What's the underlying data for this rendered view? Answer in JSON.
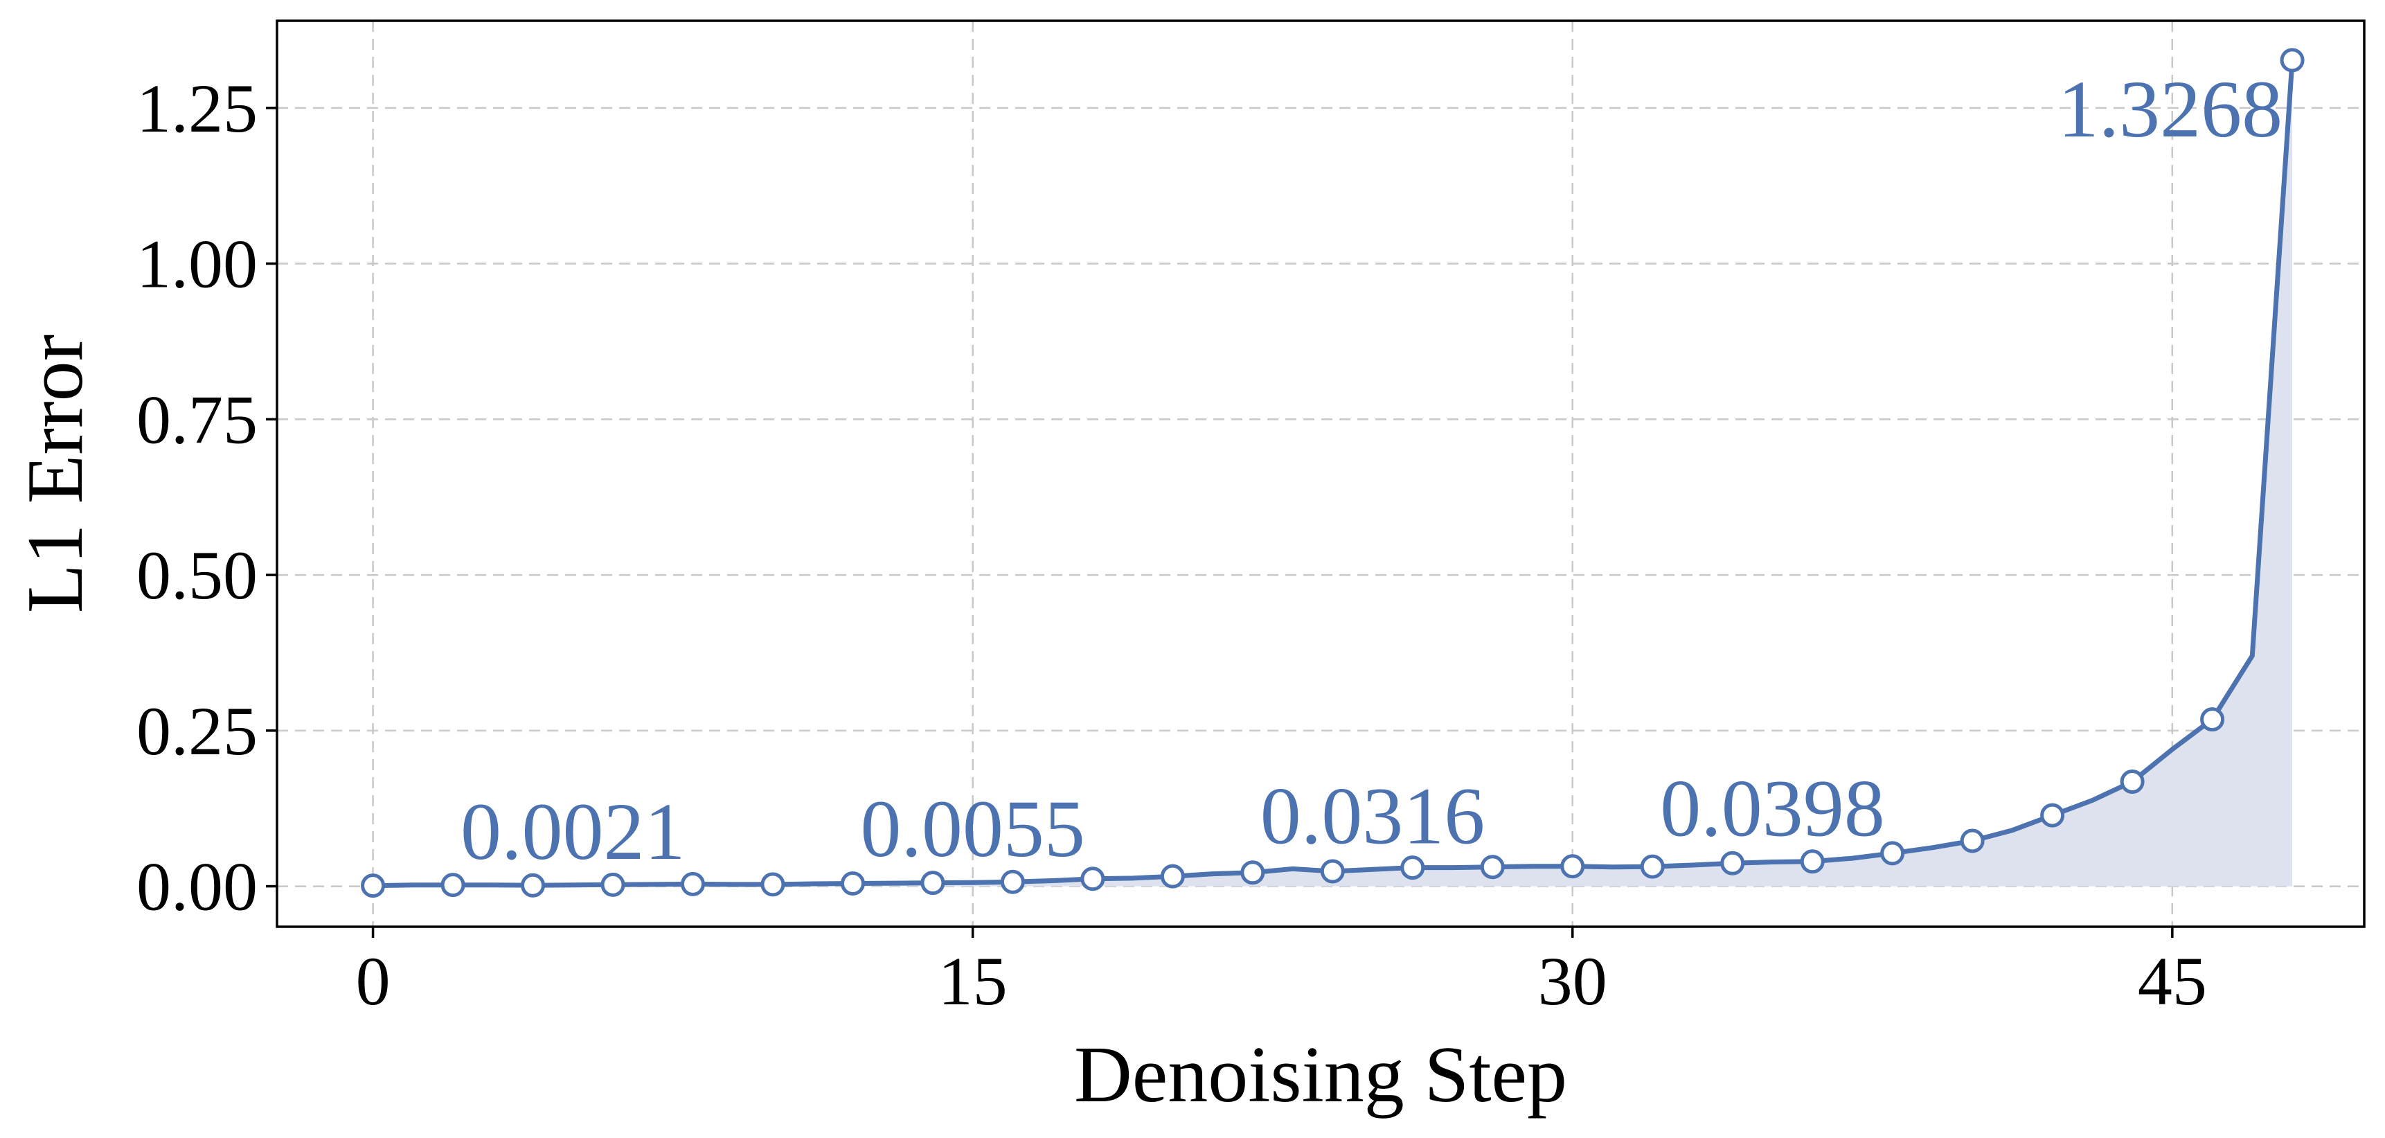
{
  "chart_data": {
    "type": "line",
    "title": "",
    "xlabel": "Denoising Step",
    "ylabel": "L1 Error",
    "xlim": [
      -2.4,
      49.8
    ],
    "ylim": [
      -0.065,
      1.39
    ],
    "x_ticks": [
      0,
      15,
      30,
      45
    ],
    "x_tick_labels": [
      "0",
      "15",
      "30",
      "45"
    ],
    "y_ticks": [
      0.0,
      0.25,
      0.5,
      0.75,
      1.0,
      1.25
    ],
    "y_tick_labels": [
      "0.00",
      "0.25",
      "0.50",
      "0.75",
      "1.00",
      "1.25"
    ],
    "grid": true,
    "fill_under": true,
    "series": [
      {
        "x": [
          0,
          1,
          2,
          3,
          4,
          5,
          6,
          7,
          8,
          9,
          10,
          11,
          12,
          13,
          14,
          15,
          16,
          17,
          18,
          19,
          20,
          21,
          22,
          23,
          24,
          25,
          26,
          27,
          28,
          29,
          30,
          31,
          32,
          33,
          34,
          35,
          36,
          37,
          38,
          39,
          40,
          41,
          42,
          43,
          44,
          45,
          46,
          47,
          48
        ],
        "values": [
          0.001,
          0.002,
          0.0021,
          0.002,
          0.0015,
          0.002,
          0.0025,
          0.003,
          0.0035,
          0.003,
          0.003,
          0.004,
          0.0045,
          0.005,
          0.0055,
          0.006,
          0.007,
          0.009,
          0.012,
          0.013,
          0.016,
          0.02,
          0.022,
          0.028,
          0.024,
          0.027,
          0.03,
          0.03,
          0.031,
          0.032,
          0.032,
          0.031,
          0.0316,
          0.034,
          0.037,
          0.039,
          0.0398,
          0.045,
          0.053,
          0.062,
          0.073,
          0.09,
          0.114,
          0.138,
          0.168,
          0.22,
          0.268,
          0.37,
          1.3268
        ],
        "markers_at_x": [
          0,
          2,
          4,
          6,
          8,
          10,
          12,
          14,
          16,
          18,
          20,
          22,
          24,
          26,
          28,
          30,
          32,
          34,
          36,
          38,
          40,
          42,
          44,
          46,
          48
        ],
        "color": "#4c72b0",
        "fill_color": "#dde2ee"
      }
    ],
    "annotations": [
      {
        "text": "0.0021",
        "x": 5
      },
      {
        "text": "0.0055",
        "x": 15
      },
      {
        "text": "0.0316",
        "x": 25
      },
      {
        "text": "0.0398",
        "x": 35
      },
      {
        "text": "1.3268",
        "x": 48
      }
    ]
  }
}
